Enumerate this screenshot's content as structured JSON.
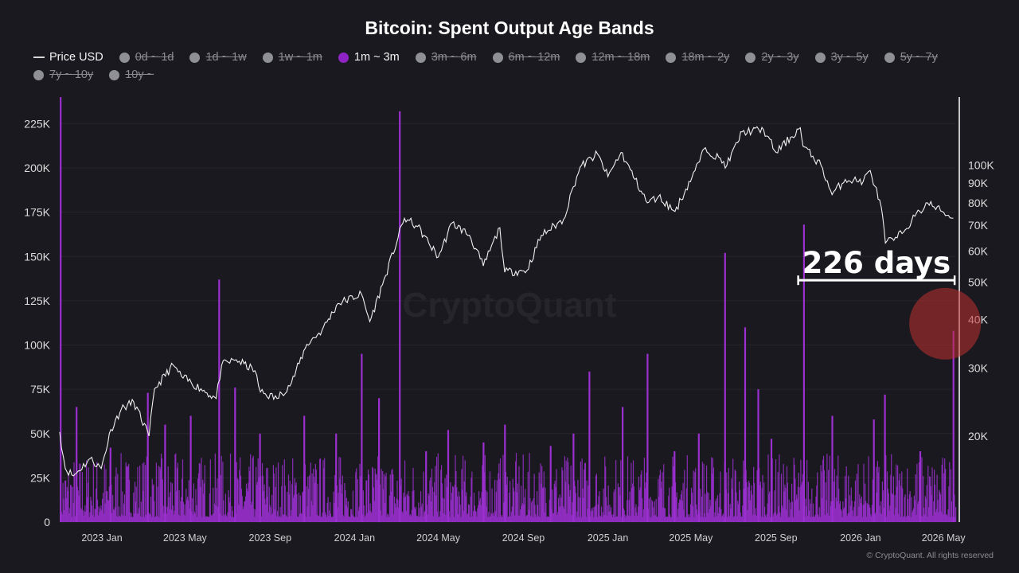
{
  "chart_data": {
    "type": "bar",
    "title": "Bitcoin: Spent Output Age Bands",
    "legend": [
      {
        "label": "Price USD",
        "kind": "line",
        "active": true
      },
      {
        "label": "0d ~ 1d",
        "kind": "dot",
        "active": false
      },
      {
        "label": "1d ~ 1w",
        "kind": "dot",
        "active": false
      },
      {
        "label": "1w ~ 1m",
        "kind": "dot",
        "active": false
      },
      {
        "label": "1m ~ 3m",
        "kind": "dot",
        "active": true
      },
      {
        "label": "3m ~ 6m",
        "kind": "dot",
        "active": false
      },
      {
        "label": "6m ~ 12m",
        "kind": "dot",
        "active": false
      },
      {
        "label": "12m ~ 18m",
        "kind": "dot",
        "active": false
      },
      {
        "label": "18m ~ 2y",
        "kind": "dot",
        "active": false
      },
      {
        "label": "2y ~ 3y",
        "kind": "dot",
        "active": false
      },
      {
        "label": "3y ~ 5y",
        "kind": "dot",
        "active": false
      },
      {
        "label": "5y ~ 7y",
        "kind": "dot",
        "active": false
      },
      {
        "label": "7y ~ 10y",
        "kind": "dot",
        "active": false
      },
      {
        "label": "10y ~",
        "kind": "dot",
        "active": false
      }
    ],
    "legend_placement": "top",
    "x_range": [
      "2022-11-01",
      "2026-05-18"
    ],
    "x_ticks": [
      {
        "date": "2023-01-01",
        "label": "2023 Jan"
      },
      {
        "date": "2023-05-01",
        "label": "2023 May"
      },
      {
        "date": "2023-09-01",
        "label": "2023 Sep"
      },
      {
        "date": "2024-01-01",
        "label": "2024 Jan"
      },
      {
        "date": "2024-05-01",
        "label": "2024 May"
      },
      {
        "date": "2024-09-01",
        "label": "2024 Sep"
      },
      {
        "date": "2025-01-01",
        "label": "2025 Jan"
      },
      {
        "date": "2025-05-01",
        "label": "2025 May"
      },
      {
        "date": "2025-09-01",
        "label": "2025 Sep"
      },
      {
        "date": "2026-01-01",
        "label": "2026 Jan"
      },
      {
        "date": "2026-05-01",
        "label": "2026 May"
      }
    ],
    "y_left": {
      "range": [
        0,
        240000
      ],
      "ticks": [
        {
          "v": 0,
          "label": "0"
        },
        {
          "v": 25000,
          "label": "25K"
        },
        {
          "v": 50000,
          "label": "50K"
        },
        {
          "v": 75000,
          "label": "75K"
        },
        {
          "v": 100000,
          "label": "100K"
        },
        {
          "v": 125000,
          "label": "125K"
        },
        {
          "v": 150000,
          "label": "150K"
        },
        {
          "v": 175000,
          "label": "175K"
        },
        {
          "v": 200000,
          "label": "200K"
        },
        {
          "v": 225000,
          "label": "225K"
        }
      ]
    },
    "y_right": {
      "scale": "log",
      "range": [
        12000,
        150000
      ],
      "ticks": [
        {
          "v": 20000,
          "label": "20K"
        },
        {
          "v": 30000,
          "label": "30K"
        },
        {
          "v": 40000,
          "label": "40K"
        },
        {
          "v": 50000,
          "label": "50K"
        },
        {
          "v": 60000,
          "label": "60K"
        },
        {
          "v": 70000,
          "label": "70K"
        },
        {
          "v": 80000,
          "label": "80K"
        },
        {
          "v": 90000,
          "label": "90K"
        },
        {
          "v": 100000,
          "label": "100K"
        }
      ]
    },
    "grid": true,
    "series": [
      {
        "name": "1m ~ 3m",
        "axis": "left",
        "color": "#9b2fd0",
        "spikes": [
          [
            "2022-11-02",
            240000
          ],
          [
            "2022-11-25",
            65000
          ],
          [
            "2023-01-13",
            42000
          ],
          [
            "2023-03-08",
            73000
          ],
          [
            "2023-04-02",
            55000
          ],
          [
            "2023-05-09",
            60000
          ],
          [
            "2023-06-19",
            137000
          ],
          [
            "2023-07-12",
            76000
          ],
          [
            "2023-08-17",
            50000
          ],
          [
            "2023-10-20",
            60000
          ],
          [
            "2023-12-05",
            50000
          ],
          [
            "2024-01-11",
            95000
          ],
          [
            "2024-02-05",
            70000
          ],
          [
            "2024-03-06",
            232000
          ],
          [
            "2024-04-13",
            40000
          ],
          [
            "2024-05-15",
            52000
          ],
          [
            "2024-07-05",
            45000
          ],
          [
            "2024-08-05",
            55000
          ],
          [
            "2024-10-10",
            43000
          ],
          [
            "2024-11-12",
            50000
          ],
          [
            "2024-12-05",
            85000
          ],
          [
            "2025-01-22",
            65000
          ],
          [
            "2025-02-27",
            95000
          ],
          [
            "2025-04-07",
            40000
          ],
          [
            "2025-05-12",
            50000
          ],
          [
            "2025-06-19",
            152000
          ],
          [
            "2025-07-18",
            110000
          ],
          [
            "2025-08-06",
            75000
          ],
          [
            "2025-08-25",
            47000
          ],
          [
            "2025-10-11",
            168000
          ],
          [
            "2025-11-21",
            60000
          ],
          [
            "2026-01-20",
            58000
          ],
          [
            "2026-02-05",
            72000
          ],
          [
            "2026-03-28",
            40000
          ],
          [
            "2026-05-15",
            108000
          ]
        ],
        "baseline": 14000
      },
      {
        "name": "Price USD",
        "axis": "right",
        "type": "line",
        "color": "#f0f0f0",
        "points": [
          [
            "2022-11-01",
            20500
          ],
          [
            "2022-11-09",
            16500
          ],
          [
            "2022-11-21",
            15800
          ],
          [
            "2022-12-15",
            17500
          ],
          [
            "2022-12-31",
            16500
          ],
          [
            "2023-01-14",
            20800
          ],
          [
            "2023-01-29",
            23500
          ],
          [
            "2023-02-16",
            24500
          ],
          [
            "2023-03-10",
            20000
          ],
          [
            "2023-03-18",
            26500
          ],
          [
            "2023-04-14",
            30500
          ],
          [
            "2023-04-26",
            28500
          ],
          [
            "2023-05-24",
            26500
          ],
          [
            "2023-06-15",
            25000
          ],
          [
            "2023-06-23",
            30500
          ],
          [
            "2023-07-14",
            31500
          ],
          [
            "2023-08-10",
            29500
          ],
          [
            "2023-08-18",
            26000
          ],
          [
            "2023-09-11",
            25000
          ],
          [
            "2023-10-02",
            27500
          ],
          [
            "2023-10-24",
            34500
          ],
          [
            "2023-11-15",
            37500
          ],
          [
            "2023-12-08",
            44000
          ],
          [
            "2024-01-11",
            46500
          ],
          [
            "2024-01-23",
            39500
          ],
          [
            "2024-02-15",
            52000
          ],
          [
            "2024-03-13",
            73000
          ],
          [
            "2024-04-01",
            69500
          ],
          [
            "2024-05-01",
            58000
          ],
          [
            "2024-05-21",
            71000
          ],
          [
            "2024-06-15",
            66000
          ],
          [
            "2024-07-05",
            55000
          ],
          [
            "2024-07-29",
            69000
          ],
          [
            "2024-08-05",
            53000
          ],
          [
            "2024-09-06",
            53500
          ],
          [
            "2024-09-27",
            66000
          ],
          [
            "2024-10-29",
            72500
          ],
          [
            "2024-11-12",
            88000
          ],
          [
            "2024-11-22",
            99000
          ],
          [
            "2024-12-17",
            107000
          ],
          [
            "2025-01-01",
            93500
          ],
          [
            "2025-01-20",
            108000
          ],
          [
            "2025-02-27",
            80000
          ],
          [
            "2025-03-15",
            83000
          ],
          [
            "2025-04-08",
            76000
          ],
          [
            "2025-05-07",
            97000
          ],
          [
            "2025-05-22",
            111000
          ],
          [
            "2025-06-22",
            100000
          ],
          [
            "2025-07-14",
            122000
          ],
          [
            "2025-08-14",
            123500
          ],
          [
            "2025-09-01",
            108000
          ],
          [
            "2025-10-06",
            125000
          ],
          [
            "2025-10-10",
            112000
          ],
          [
            "2025-11-05",
            100000
          ],
          [
            "2025-11-21",
            84000
          ],
          [
            "2025-12-10",
            92000
          ],
          [
            "2026-01-05",
            91000
          ],
          [
            "2026-01-15",
            97000
          ],
          [
            "2026-01-31",
            78000
          ],
          [
            "2026-02-06",
            63000
          ],
          [
            "2026-02-23",
            65000
          ],
          [
            "2026-03-16",
            72000
          ],
          [
            "2026-04-08",
            80000
          ],
          [
            "2026-04-29",
            76000
          ],
          [
            "2026-05-15",
            73000
          ]
        ]
      }
    ],
    "annotations": [
      {
        "type": "bracket",
        "text": "226 days",
        "x0": "2025-10-03",
        "x1": "2026-05-17",
        "y_right": 50500
      },
      {
        "type": "circle",
        "x": "2026-05-17",
        "y_right": 39000,
        "color": "#c0302f"
      }
    ]
  },
  "credit": "© CryptoQuant. All rights reserved"
}
